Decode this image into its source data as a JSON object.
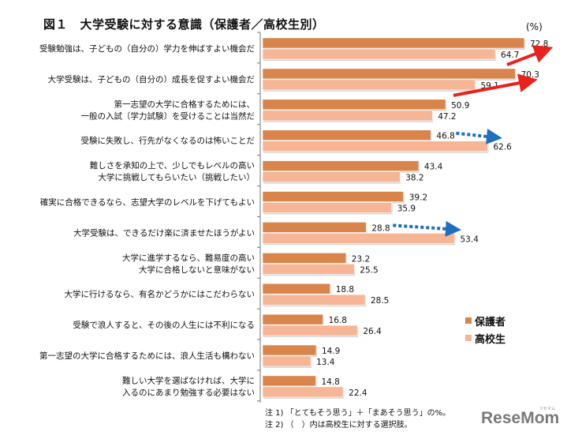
{
  "chart_data": {
    "type": "bar",
    "orientation": "horizontal",
    "title": "図１　大学受験に対する意識（保護者／高校生別）",
    "unit_label": "(%)",
    "xlabel": "",
    "ylabel": "",
    "xlim": [
      0,
      80
    ],
    "grid": false,
    "legend_position": "right",
    "categories": [
      [
        "受験勉強は、子どもの（自分の）学力を伸ばすよい機会だ"
      ],
      [
        "大学受験は、子どもの（自分の）成長を促すよい機会だ"
      ],
      [
        "第一志望の大学に合格するためには、",
        "一般の入試〔学力試験〕を受けることは当然だ"
      ],
      [
        "受験に失敗し、行先がなくなるのは怖いことだ"
      ],
      [
        "難しさを承知の上で、少しでもレベルの高い",
        "大学に挑戦してもらいたい（挑戦したい）"
      ],
      [
        "確実に合格できるなら、志望大学のレベルを下げてもよい"
      ],
      [
        "大学受験は、できるだけ楽に済ませたほうがよい"
      ],
      [
        "大学に進学するなら、難易度の高い",
        "大学に合格しないと意味がない"
      ],
      [
        "大学に行けるなら、有名かどうかにはこだわらない"
      ],
      [
        "受験で浪人すると、その後の人生には不利になる"
      ],
      [
        "第一志望の大学に合格するためには、浪人生活も構わない"
      ],
      [
        "難しい大学を選ばなければ、大学に",
        "入るのにあまり勉強する必要はない"
      ]
    ],
    "series": [
      {
        "name": "保護者",
        "color": "#D9844A",
        "values": [
          72.8,
          70.3,
          50.9,
          46.8,
          43.4,
          39.2,
          28.8,
          23.2,
          18.8,
          16.8,
          14.9,
          14.8
        ]
      },
      {
        "name": "高校生",
        "color": "#F6B594",
        "values": [
          64.7,
          59.1,
          47.2,
          62.6,
          38.2,
          35.9,
          53.4,
          25.5,
          28.5,
          26.4,
          13.4,
          22.4
        ]
      }
    ],
    "annotations": [
      {
        "type": "arrow",
        "style": "solid",
        "color": "#E8231E",
        "category_index": 0,
        "meaning": "保護者 > 高校生"
      },
      {
        "type": "arrow",
        "style": "solid",
        "color": "#E8231E",
        "category_index": 1,
        "meaning": "保護者 > 高校生"
      },
      {
        "type": "arrow",
        "style": "dotted",
        "color": "#1E6FC0",
        "category_index": 3,
        "meaning": "高校生 > 保護者"
      },
      {
        "type": "arrow",
        "style": "dotted",
        "color": "#1E6FC0",
        "category_index": 6,
        "meaning": "高校生 > 保護者"
      }
    ]
  },
  "legend": [
    {
      "label": "保護者",
      "color": "#D9844A"
    },
    {
      "label": "高校生",
      "color": "#F6B594"
    }
  ],
  "notes": [
    "注 1) 「とてもそう思う」＋「まあそう思う」の%。",
    "注 2) （　）内は高校生に対する選択肢。"
  ],
  "logo": {
    "text": "ReseMom",
    "ruby": "リセマム"
  }
}
